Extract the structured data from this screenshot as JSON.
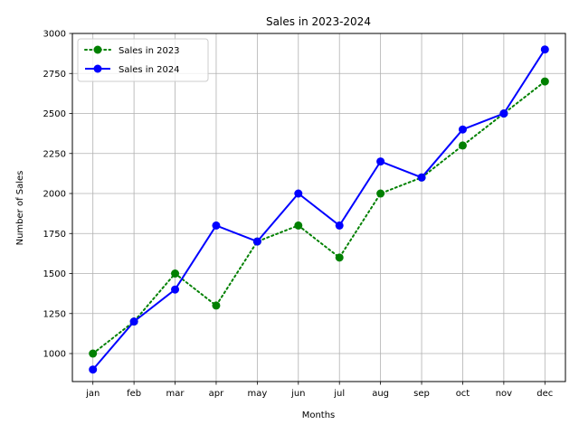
{
  "chart_data": {
    "type": "line",
    "title": "Sales in 2023-2024",
    "xlabel": "Months",
    "ylabel": "Number of Sales",
    "categories": [
      "jan",
      "feb",
      "mar",
      "apr",
      "may",
      "jun",
      "jul",
      "aug",
      "sep",
      "oct",
      "nov",
      "dec"
    ],
    "ylim": [
      825,
      3000
    ],
    "yticks": [
      1000,
      1250,
      1500,
      1750,
      2000,
      2250,
      2500,
      2750,
      3000
    ],
    "grid": true,
    "legend_position": "top-left",
    "series": [
      {
        "name": "Sales in 2023",
        "values": [
          1000,
          1200,
          1500,
          1300,
          1700,
          1800,
          1600,
          2000,
          2100,
          2300,
          2500,
          2700
        ],
        "color": "#008000",
        "line_style": "dotted",
        "marker": "circle"
      },
      {
        "name": "Sales in 2024",
        "values": [
          900,
          1200,
          1400,
          1800,
          1700,
          2000,
          1800,
          2200,
          2100,
          2400,
          2500,
          2900
        ],
        "color": "#0000ff",
        "line_style": "solid",
        "marker": "circle"
      }
    ]
  }
}
